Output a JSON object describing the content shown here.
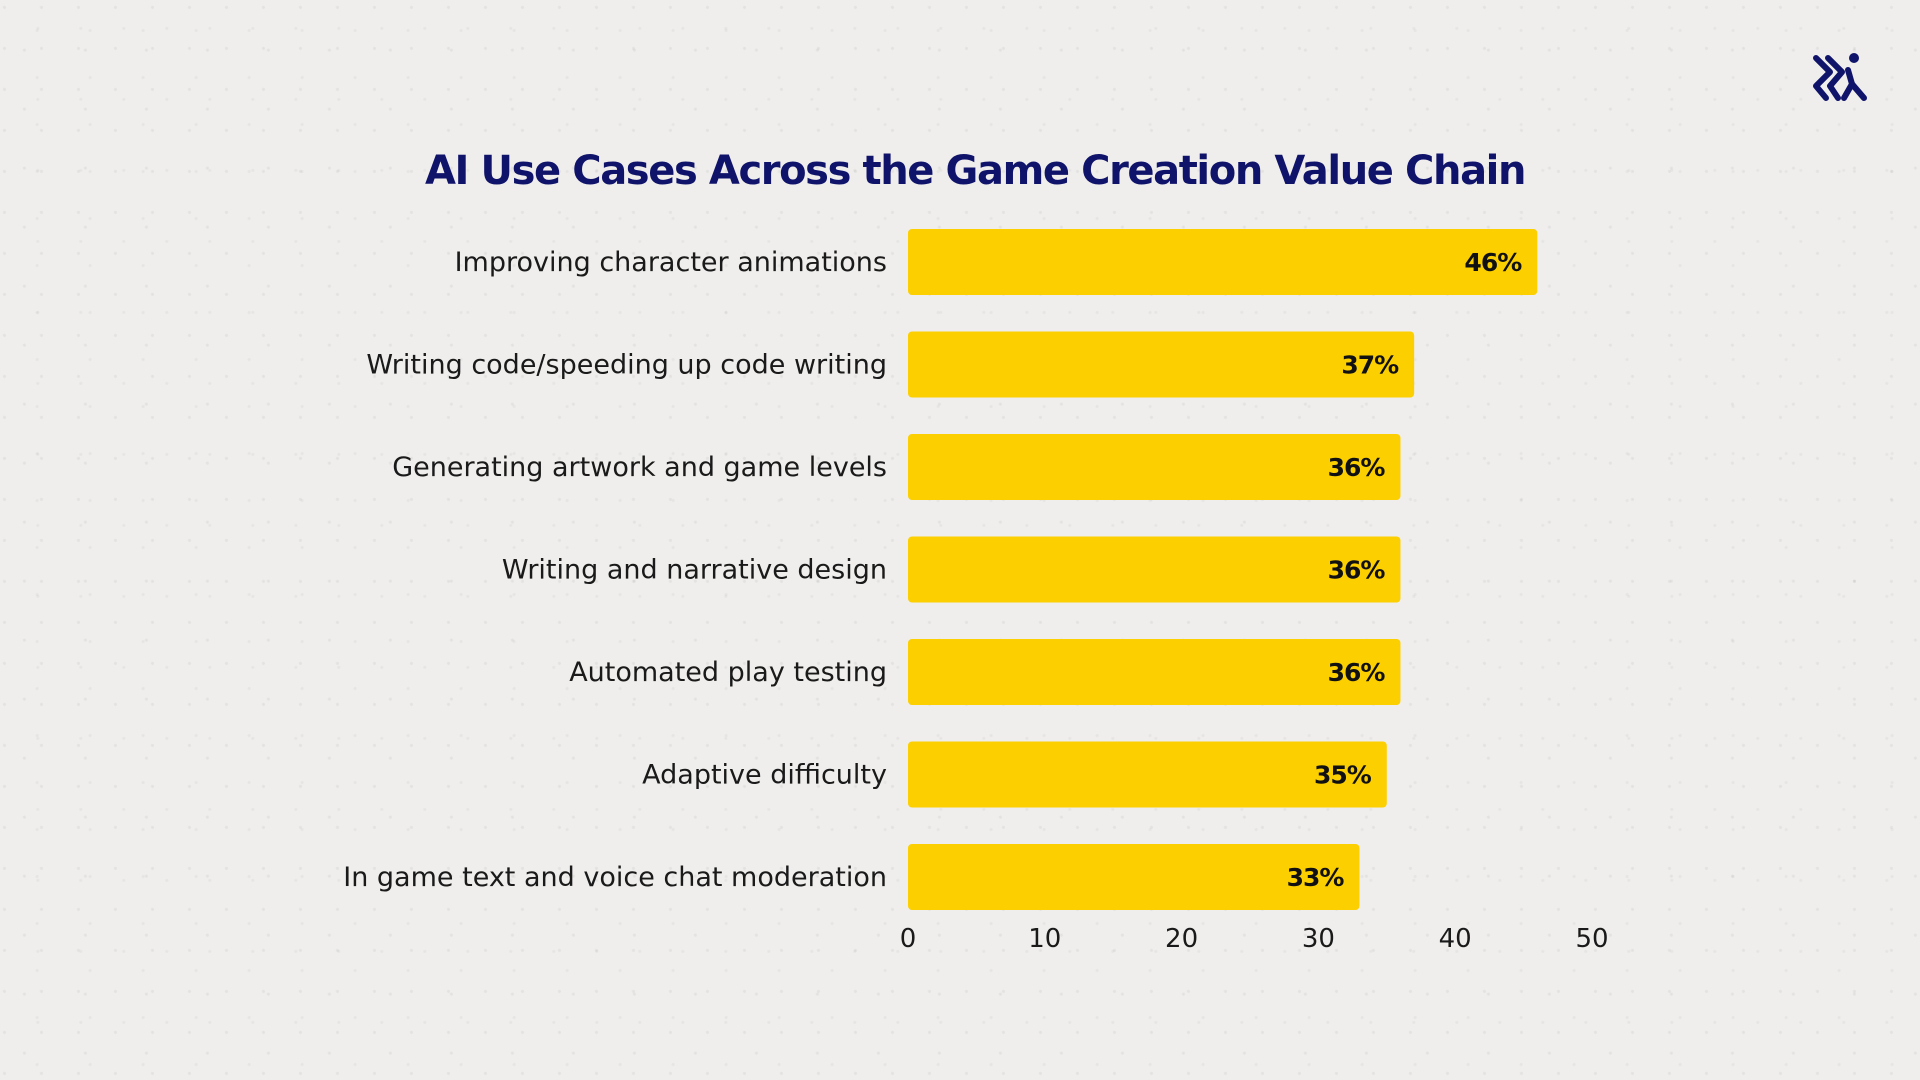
{
  "logo": {
    "icon": "runner-logo-icon",
    "color": "#10136a"
  },
  "colors": {
    "bar": "#fccf00",
    "title": "#10136a",
    "background": "#efeeec"
  },
  "chart_data": {
    "type": "bar",
    "orientation": "horizontal",
    "title": "AI Use Cases Across the Game Creation Value Chain",
    "xlabel": "",
    "ylabel": "",
    "categories": [
      "Improving character animations",
      "Writing code/speeding up code writing",
      "Generating artwork and game levels",
      "Writing and narrative design",
      "Automated play testing",
      "Adaptive difficulty",
      "In game text and voice chat moderation"
    ],
    "values": [
      46,
      37,
      36,
      36,
      36,
      35,
      33
    ],
    "value_labels": [
      "46%",
      "37%",
      "36%",
      "36%",
      "36%",
      "35%",
      "33%"
    ],
    "xlim": [
      0,
      50
    ],
    "xticks": [
      "0",
      "10",
      "20",
      "30",
      "40",
      "50"
    ],
    "grid": false,
    "legend": "none"
  }
}
